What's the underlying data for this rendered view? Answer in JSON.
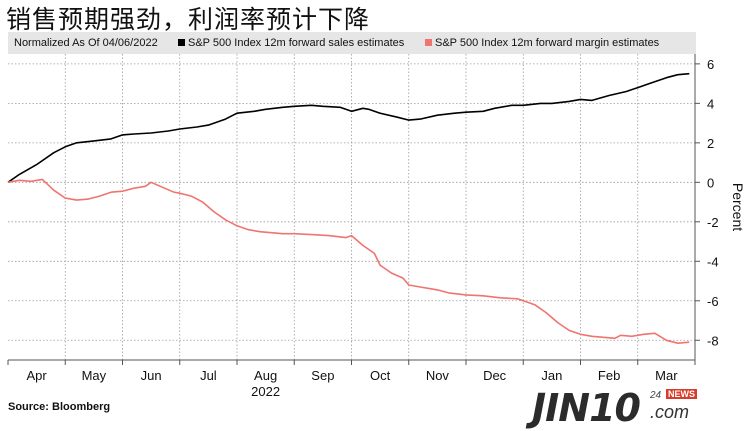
{
  "title": "销售预期强劲，利润率预计下降",
  "legend": {
    "note": "Normalized As Of 04/06/2022",
    "items": [
      {
        "label": "S&P 500 Index 12m forward sales estimates",
        "color": "#000000"
      },
      {
        "label": "S&P 500 Index 12m forward margin estimates",
        "color": "#f07470"
      }
    ]
  },
  "source": "Source: Bloomberg",
  "watermark": {
    "main": "JIN10",
    "num": "24",
    "news": "NEWS",
    "domain": ".com"
  },
  "chart_data": {
    "type": "line",
    "ylabel": "Percent",
    "ylim": [
      -9,
      6.5
    ],
    "yticks": [
      6,
      4,
      2,
      0,
      -2,
      -4,
      -6,
      -8
    ],
    "xlim": [
      0,
      12
    ],
    "xticks": [
      {
        "label": "Apr",
        "pos": 0.5
      },
      {
        "label": "May",
        "pos": 1.5
      },
      {
        "label": "Jun",
        "pos": 2.5
      },
      {
        "label": "Jul",
        "pos": 3.5
      },
      {
        "label": "Aug",
        "pos": 4.5
      },
      {
        "label": "Sep",
        "pos": 5.5
      },
      {
        "label": "Oct",
        "pos": 6.5
      },
      {
        "label": "Nov",
        "pos": 7.5
      },
      {
        "label": "Dec",
        "pos": 8.5
      },
      {
        "label": "Jan",
        "pos": 9.5
      },
      {
        "label": "Feb",
        "pos": 10.5
      },
      {
        "label": "Mar",
        "pos": 11.5
      }
    ],
    "year_label": {
      "label": "2022",
      "pos": 4.5
    },
    "series": [
      {
        "name": "S&P 500 Index 12m forward sales estimates",
        "color": "#000000",
        "x": [
          0,
          0.2,
          0.5,
          0.8,
          1.0,
          1.2,
          1.5,
          1.8,
          2.0,
          2.2,
          2.5,
          2.8,
          3.0,
          3.3,
          3.5,
          3.8,
          4.0,
          4.3,
          4.5,
          4.8,
          5.0,
          5.3,
          5.5,
          5.8,
          6.0,
          6.2,
          6.3,
          6.5,
          6.8,
          7.0,
          7.2,
          7.5,
          7.8,
          8.0,
          8.3,
          8.5,
          8.8,
          9.0,
          9.3,
          9.5,
          9.8,
          10.0,
          10.2,
          10.5,
          10.8,
          11.0,
          11.2,
          11.5,
          11.7,
          11.9
        ],
        "y": [
          0,
          0.4,
          0.9,
          1.5,
          1.8,
          2.0,
          2.1,
          2.2,
          2.4,
          2.45,
          2.5,
          2.6,
          2.7,
          2.8,
          2.9,
          3.2,
          3.5,
          3.6,
          3.7,
          3.8,
          3.85,
          3.9,
          3.85,
          3.8,
          3.6,
          3.75,
          3.7,
          3.5,
          3.3,
          3.15,
          3.2,
          3.4,
          3.5,
          3.55,
          3.6,
          3.75,
          3.9,
          3.9,
          4.0,
          4.0,
          4.1,
          4.2,
          4.15,
          4.4,
          4.6,
          4.8,
          5.0,
          5.3,
          5.45,
          5.5
        ]
      },
      {
        "name": "S&P 500 Index 12m forward margin estimates",
        "color": "#f07470",
        "x": [
          0,
          0.2,
          0.4,
          0.6,
          0.8,
          1.0,
          1.2,
          1.4,
          1.6,
          1.8,
          2.0,
          2.2,
          2.4,
          2.5,
          2.7,
          2.9,
          3.0,
          3.2,
          3.4,
          3.6,
          3.8,
          4.0,
          4.2,
          4.4,
          4.6,
          4.8,
          5.0,
          5.3,
          5.6,
          5.9,
          6.0,
          6.2,
          6.4,
          6.5,
          6.7,
          6.9,
          7.0,
          7.2,
          7.4,
          7.5,
          7.7,
          8.0,
          8.3,
          8.6,
          8.9,
          9.2,
          9.4,
          9.6,
          9.8,
          10.0,
          10.2,
          10.4,
          10.6,
          10.7,
          10.9,
          11.1,
          11.3,
          11.5,
          11.7,
          11.9
        ],
        "y": [
          0,
          0.1,
          0.05,
          0.15,
          -0.4,
          -0.8,
          -0.9,
          -0.85,
          -0.7,
          -0.5,
          -0.45,
          -0.3,
          -0.2,
          0.0,
          -0.25,
          -0.5,
          -0.55,
          -0.7,
          -1.0,
          -1.5,
          -1.9,
          -2.2,
          -2.4,
          -2.5,
          -2.55,
          -2.6,
          -2.6,
          -2.65,
          -2.7,
          -2.8,
          -2.7,
          -3.2,
          -3.6,
          -4.2,
          -4.6,
          -4.85,
          -5.2,
          -5.3,
          -5.4,
          -5.45,
          -5.6,
          -5.7,
          -5.75,
          -5.85,
          -5.9,
          -6.2,
          -6.6,
          -7.1,
          -7.5,
          -7.7,
          -7.8,
          -7.85,
          -7.9,
          -7.75,
          -7.8,
          -7.7,
          -7.65,
          -8.0,
          -8.15,
          -8.1
        ]
      }
    ]
  }
}
